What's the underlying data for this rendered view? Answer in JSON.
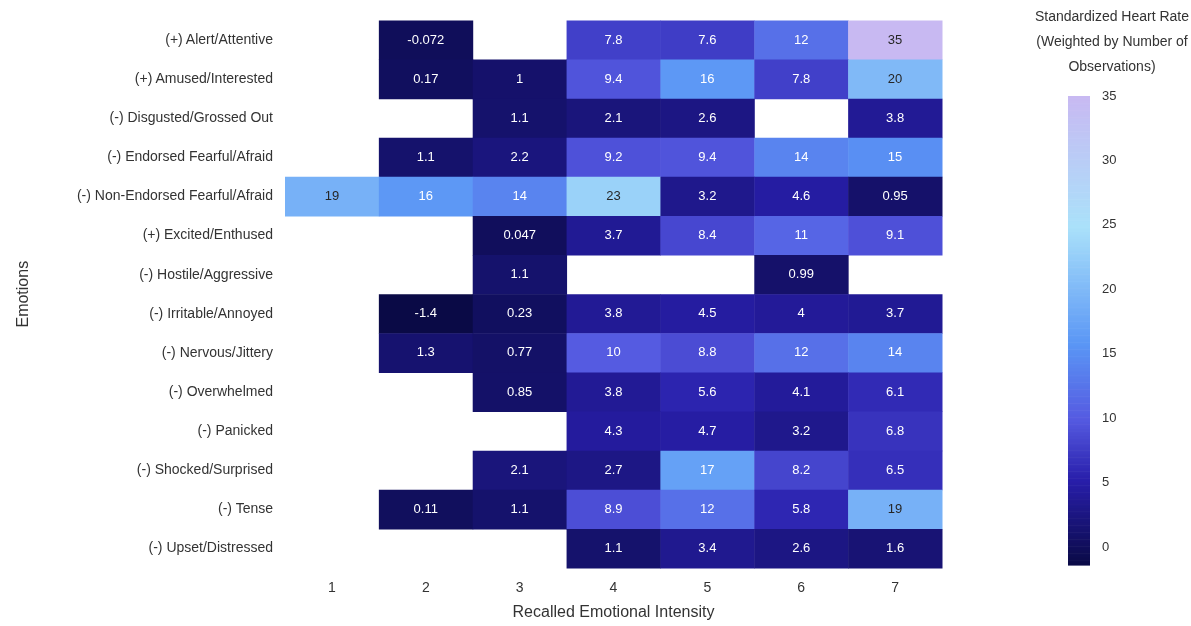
{
  "chart_data": {
    "type": "heatmap",
    "xlabel": "Recalled Emotional Intensity",
    "ylabel": "Emotions",
    "clabel": "Standardized Heart Rate (Weighted by Number of Observations)",
    "categories": [
      "1",
      "2",
      "3",
      "4",
      "5",
      "6",
      "7"
    ],
    "y_categories": [
      "(+) Alert/Attentive",
      "(+) Amused/Interested",
      "(-) Disgusted/Grossed Out",
      "(-) Endorsed Fearful/Afraid",
      "(-) Non-Endorsed Fearful/Afraid",
      "(+) Excited/Enthused",
      "(-) Hostile/Aggressive",
      "(-) Irritable/Annoyed",
      "(-) Nervous/Jittery",
      "(-) Overwhelmed",
      "(-) Panicked",
      "(-) Shocked/Surprised",
      "(-) Tense",
      "(-) Upset/Distressed"
    ],
    "cells": [
      [
        null,
        -0.072,
        null,
        7.8,
        7.6,
        12,
        35
      ],
      [
        null,
        0.17,
        1,
        9.4,
        16,
        7.8,
        20
      ],
      [
        null,
        null,
        1.1,
        2.1,
        2.6,
        null,
        3.8
      ],
      [
        null,
        1.1,
        2.2,
        9.2,
        9.4,
        14,
        15
      ],
      [
        19,
        16,
        14,
        23,
        3.2,
        4.6,
        0.95
      ],
      [
        null,
        null,
        0.047,
        3.7,
        8.4,
        11,
        9.1
      ],
      [
        null,
        null,
        1.1,
        null,
        null,
        0.99,
        null
      ],
      [
        null,
        -1.4,
        0.23,
        3.8,
        4.5,
        4,
        3.7
      ],
      [
        null,
        1.3,
        0.77,
        10,
        8.8,
        12,
        14
      ],
      [
        null,
        null,
        0.85,
        3.8,
        5.6,
        4.1,
        6.1
      ],
      [
        null,
        null,
        null,
        4.3,
        4.7,
        3.2,
        6.8
      ],
      [
        null,
        null,
        2.1,
        2.7,
        17,
        8.2,
        6.5
      ],
      [
        null,
        0.11,
        1.1,
        8.9,
        12,
        5.8,
        19
      ],
      [
        null,
        null,
        null,
        1.1,
        3.4,
        2.6,
        1.6
      ]
    ],
    "clim": [
      -1.4,
      35
    ],
    "cticks": [
      0,
      5,
      10,
      15,
      20,
      25,
      30,
      35
    ],
    "data_labels": true,
    "grid": false,
    "legend": false
  }
}
